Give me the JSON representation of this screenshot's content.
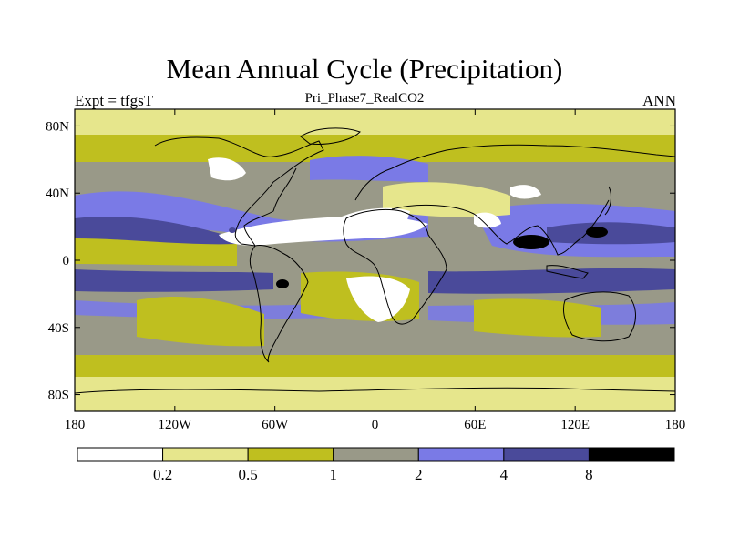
{
  "title": "Mean Annual Cycle (Precipitation)",
  "left_label": "Expt = tfgsT",
  "center_label": "Pri_Phase7_RealCO2",
  "right_label": "ANN",
  "y_ticks": [
    {
      "label": "80N",
      "lat": 80
    },
    {
      "label": "40N",
      "lat": 40
    },
    {
      "label": "0",
      "lat": 0
    },
    {
      "label": "40S",
      "lat": -40
    },
    {
      "label": "80S",
      "lat": -80
    }
  ],
  "x_ticks": [
    {
      "label": "180",
      "lon": -180
    },
    {
      "label": "120W",
      "lon": -120
    },
    {
      "label": "60W",
      "lon": -60
    },
    {
      "label": "0",
      "lon": 0
    },
    {
      "label": "60E",
      "lon": 60
    },
    {
      "label": "120E",
      "lon": 120
    },
    {
      "label": "180",
      "lon": 180
    }
  ],
  "colorbar": {
    "levels": [
      "0.2",
      "0.5",
      "1",
      "2",
      "4",
      "8"
    ],
    "colors": [
      "#ffffff",
      "#e6e68c",
      "#bfbf1f",
      "#999988",
      "#7a7ae6",
      "#4a4a9a",
      "#000000"
    ]
  },
  "colors": {
    "ocean_base": "#999988",
    "very_dry": "#ffffff",
    "dry": "#e6e68c",
    "semi_dry": "#bfbf1f",
    "moist": "#999988",
    "wet": "#7a7ae6",
    "very_wet": "#4a4a9a",
    "extreme": "#000000"
  }
}
